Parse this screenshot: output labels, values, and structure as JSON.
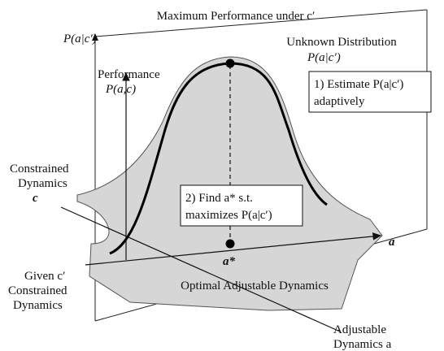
{
  "title": "Maximum Performance under c′",
  "vertical_axis_label": "P(a|c′)",
  "performance_label": [
    "Performance",
    "P(a,c)"
  ],
  "distribution_label": [
    "Unknown Distribution",
    "P(a|c′)"
  ],
  "step1_box": [
    "1) Estimate P(a|c′)",
    "adaptively"
  ],
  "step2_box": [
    "2) Find a* s.t.",
    "maximizes P(a|c′)"
  ],
  "constrained_label": [
    "Constrained",
    "Dynamics",
    "c"
  ],
  "a_axis_label": "a",
  "optimum_label": "a*",
  "given_label": [
    "Given c′",
    "Constrained",
    "Dynamics"
  ],
  "optimal_label": "Optimal Adjustable Dynamics",
  "adjustable_label": [
    "Adjustable",
    "Dynamics a"
  ]
}
